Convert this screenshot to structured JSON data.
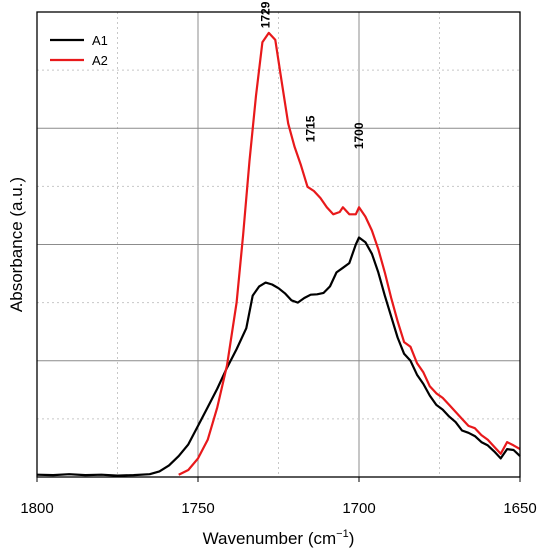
{
  "chart_data": {
    "type": "line",
    "xlabel": "Wavenumber (cm",
    "xlabel_sup": "−1",
    "xlabel_close": ")",
    "ylabel": "Absorbance (a.u.)",
    "xlim": [
      1800,
      1650
    ],
    "ylim": [
      0,
      1.0
    ],
    "x_ticks": [
      "1800",
      "1750",
      "1700",
      "1650"
    ],
    "grid": true,
    "legend_position": "top-left",
    "series": [
      {
        "name": "A1",
        "color": "#000000",
        "points": [
          [
            1800,
            0.005
          ],
          [
            1795,
            0.004
          ],
          [
            1790,
            0.006
          ],
          [
            1785,
            0.004
          ],
          [
            1780,
            0.005
          ],
          [
            1775,
            0.003
          ],
          [
            1770,
            0.004
          ],
          [
            1765,
            0.006
          ],
          [
            1762,
            0.012
          ],
          [
            1759,
            0.025
          ],
          [
            1756,
            0.045
          ],
          [
            1753,
            0.07
          ],
          [
            1750,
            0.11
          ],
          [
            1747,
            0.15
          ],
          [
            1744,
            0.19
          ],
          [
            1741,
            0.235
          ],
          [
            1738,
            0.275
          ],
          [
            1735,
            0.32
          ],
          [
            1733,
            0.39
          ],
          [
            1731,
            0.41
          ],
          [
            1729,
            0.418
          ],
          [
            1727,
            0.414
          ],
          [
            1725,
            0.406
          ],
          [
            1723,
            0.395
          ],
          [
            1721,
            0.38
          ],
          [
            1719,
            0.375
          ],
          [
            1717,
            0.385
          ],
          [
            1715,
            0.392
          ],
          [
            1713,
            0.393
          ],
          [
            1711,
            0.396
          ],
          [
            1709,
            0.41
          ],
          [
            1707,
            0.44
          ],
          [
            1705,
            0.45
          ],
          [
            1703,
            0.46
          ],
          [
            1701,
            0.5
          ],
          [
            1700,
            0.515
          ],
          [
            1698,
            0.505
          ],
          [
            1696,
            0.48
          ],
          [
            1694,
            0.44
          ],
          [
            1692,
            0.39
          ],
          [
            1690,
            0.345
          ],
          [
            1688,
            0.3
          ],
          [
            1686,
            0.265
          ],
          [
            1684,
            0.25
          ],
          [
            1682,
            0.22
          ],
          [
            1680,
            0.2
          ],
          [
            1678,
            0.175
          ],
          [
            1676,
            0.155
          ],
          [
            1674,
            0.145
          ],
          [
            1672,
            0.13
          ],
          [
            1670,
            0.118
          ],
          [
            1668,
            0.1
          ],
          [
            1666,
            0.095
          ],
          [
            1664,
            0.088
          ],
          [
            1662,
            0.075
          ],
          [
            1660,
            0.068
          ],
          [
            1658,
            0.055
          ],
          [
            1656,
            0.04
          ],
          [
            1654,
            0.06
          ],
          [
            1652,
            0.058
          ],
          [
            1650,
            0.045
          ]
        ]
      },
      {
        "name": "A2",
        "color": "#e8191b",
        "points": [
          [
            1756,
            0.005
          ],
          [
            1753,
            0.015
          ],
          [
            1750,
            0.04
          ],
          [
            1747,
            0.08
          ],
          [
            1744,
            0.15
          ],
          [
            1741,
            0.24
          ],
          [
            1738,
            0.375
          ],
          [
            1736,
            0.52
          ],
          [
            1734,
            0.68
          ],
          [
            1732,
            0.82
          ],
          [
            1730,
            0.935
          ],
          [
            1728,
            0.955
          ],
          [
            1726,
            0.94
          ],
          [
            1724,
            0.85
          ],
          [
            1722,
            0.76
          ],
          [
            1720,
            0.71
          ],
          [
            1718,
            0.67
          ],
          [
            1716,
            0.624
          ],
          [
            1714,
            0.615
          ],
          [
            1712,
            0.6
          ],
          [
            1710,
            0.58
          ],
          [
            1708,
            0.565
          ],
          [
            1706,
            0.57
          ],
          [
            1705,
            0.58
          ],
          [
            1703,
            0.565
          ],
          [
            1701,
            0.565
          ],
          [
            1700,
            0.58
          ],
          [
            1698,
            0.56
          ],
          [
            1696,
            0.53
          ],
          [
            1694,
            0.49
          ],
          [
            1692,
            0.44
          ],
          [
            1690,
            0.385
          ],
          [
            1688,
            0.335
          ],
          [
            1686,
            0.29
          ],
          [
            1684,
            0.28
          ],
          [
            1682,
            0.245
          ],
          [
            1680,
            0.225
          ],
          [
            1678,
            0.195
          ],
          [
            1676,
            0.18
          ],
          [
            1674,
            0.17
          ],
          [
            1672,
            0.155
          ],
          [
            1670,
            0.14
          ],
          [
            1668,
            0.125
          ],
          [
            1666,
            0.11
          ],
          [
            1664,
            0.105
          ],
          [
            1662,
            0.09
          ],
          [
            1660,
            0.08
          ],
          [
            1658,
            0.065
          ],
          [
            1656,
            0.05
          ],
          [
            1654,
            0.075
          ],
          [
            1652,
            0.068
          ],
          [
            1650,
            0.06
          ]
        ]
      }
    ],
    "annotations": [
      {
        "text": "1729",
        "x": 1729,
        "y": 0.965
      },
      {
        "text": "1715",
        "x": 1715,
        "y": 0.72
      },
      {
        "text": "1700",
        "x": 1700,
        "y": 0.705
      }
    ]
  }
}
